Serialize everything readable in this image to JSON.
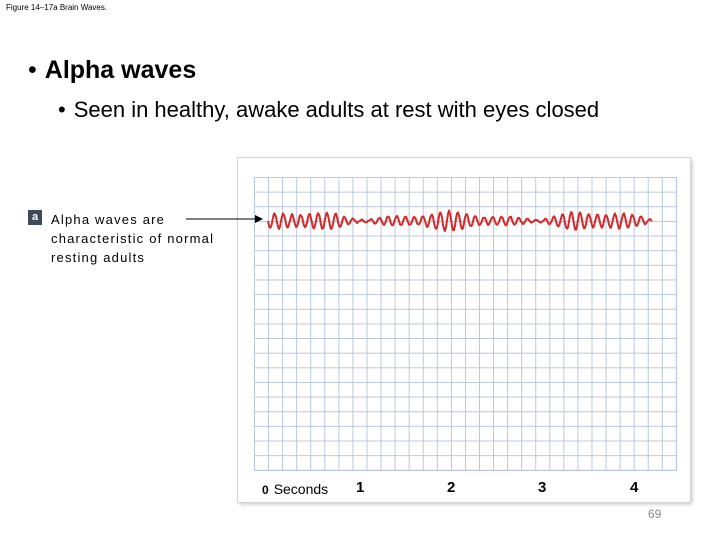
{
  "caption": "Figure 14–17a Brain Waves.",
  "bullet_main": "Alpha waves",
  "bullet_sub": "Seen in healthy, awake adults at rest with eyes closed",
  "figure": {
    "badge": "a",
    "label": "Alpha waves are characteristic of normal resting adults",
    "axis_ticks": [
      "1",
      "2",
      "3",
      "4"
    ],
    "axis_zero": "0",
    "axis_unit": "Seconds",
    "wave_color": "#d32a2a",
    "grid_color": "#b9c6de"
  },
  "slide_number": "69"
}
